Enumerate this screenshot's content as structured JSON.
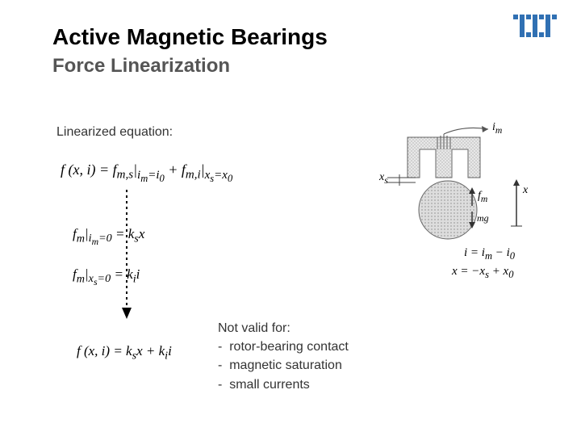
{
  "title": "Active Magnetic Bearings",
  "subtitle": "Force Linearization",
  "section_label": "Linearized equation:",
  "eq1_html": "f (x, i) = f<sub>m,s</sub>|<sub>i<sub>m</sub>=i<sub>0</sub></sub> + f<sub>m,i</sub>|<sub>x<sub>s</sub>=x<sub>0</sub></sub>",
  "eq2_html": "f<sub>m</sub>|<sub>i<sub>m</sub>=0</sub> = k<sub>s</sub>x",
  "eq3_html": "f<sub>m</sub>|<sub>x<sub>s</sub>=0</sub> = k<sub>i</sub>i",
  "eq4_html": "f (x, i) = k<sub>s</sub>x + k<sub>i</sub>i",
  "diagram": {
    "label_im": "i",
    "label_im_sub": "m",
    "label_xs": "x",
    "label_xs_sub": "s",
    "label_fm": "f",
    "label_fm_sub": "m",
    "label_mg": "mg",
    "label_x": "x",
    "eq_i": "i = i",
    "eq_i_sub1": "m",
    "eq_i_mid": " − i",
    "eq_i_sub2": "0",
    "eq_x": "x = −x",
    "eq_x_sub1": "s",
    "eq_x_mid": " + x",
    "eq_x_sub2": "0"
  },
  "not_valid": {
    "heading": "Not valid for:",
    "items": [
      "rotor-bearing contact",
      "magnetic saturation",
      "small currents"
    ]
  },
  "colors": {
    "logo_blue": "#3070b3",
    "text_gray": "#555",
    "hatch": "#b8b8b8"
  }
}
